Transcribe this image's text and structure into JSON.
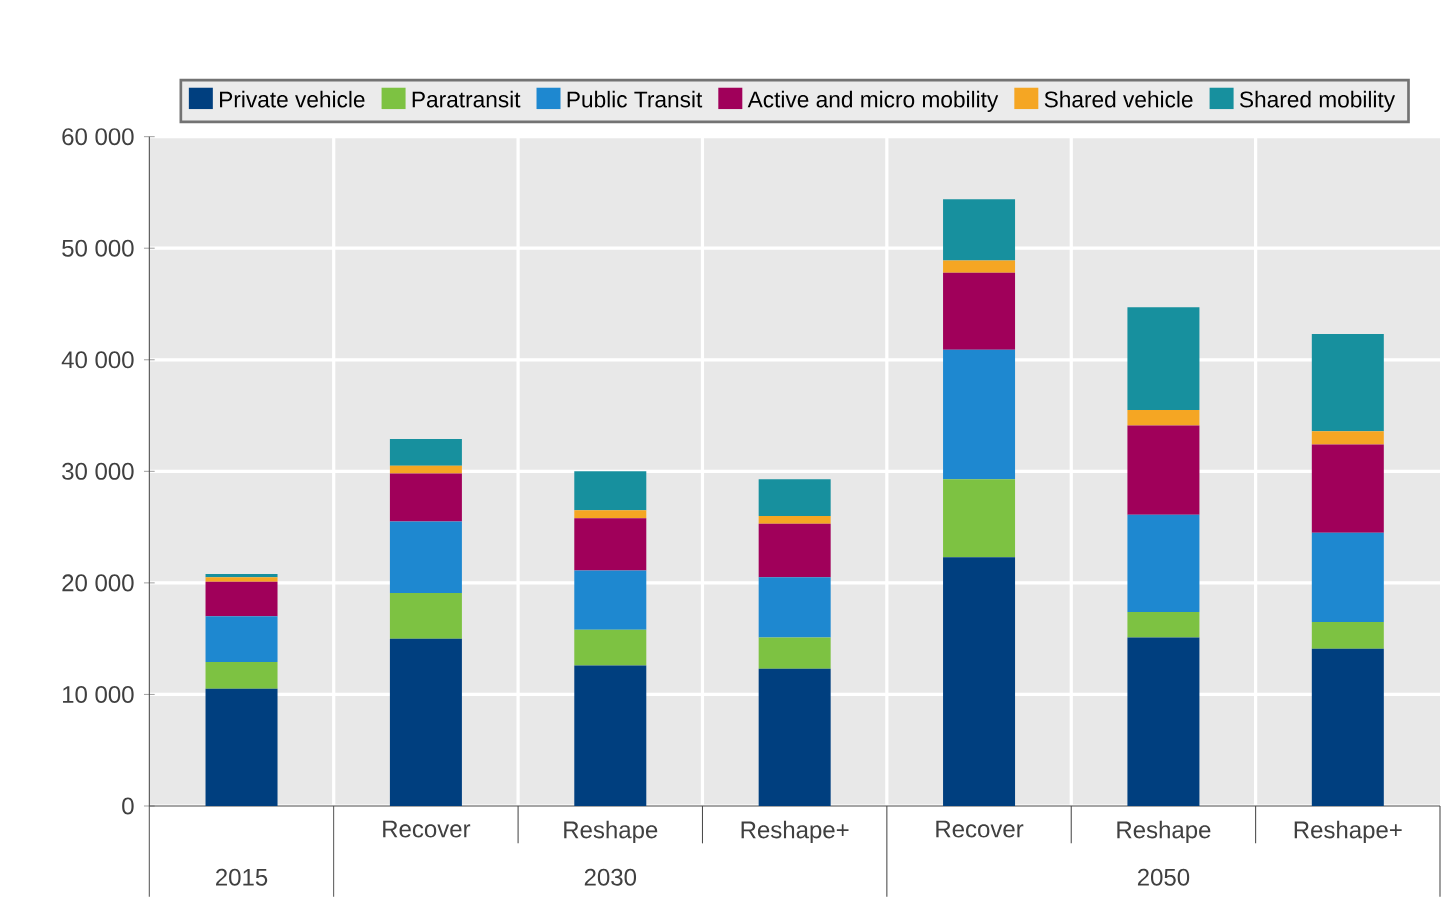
{
  "chart_data": {
    "type": "bar",
    "stacked": true,
    "categories": [
      null,
      "Recover",
      "Reshape",
      "Reshape+",
      "Recover",
      "Reshape",
      "Reshape+"
    ],
    "series": [
      {
        "name": "Private vehicle",
        "color": "#003f7f",
        "values": [
          10500,
          15000,
          12600,
          12300,
          22300,
          15100,
          14100
        ]
      },
      {
        "name": "Paratransit",
        "color": "#7dc242",
        "values": [
          2400,
          4100,
          3200,
          2800,
          7000,
          2300,
          2400
        ]
      },
      {
        "name": "Public Transit",
        "color": "#1e88d0",
        "values": [
          4100,
          6400,
          5300,
          5400,
          11600,
          8700,
          8000
        ]
      },
      {
        "name": "Active and micro mobility",
        "color": "#a0005a",
        "values": [
          3100,
          4300,
          4700,
          4800,
          6900,
          8000,
          7900
        ]
      },
      {
        "name": "Shared vehicle",
        "color": "#f5a623",
        "values": [
          400,
          700,
          700,
          700,
          1100,
          1400,
          1200
        ]
      },
      {
        "name": "Shared mobility",
        "color": "#17909e",
        "values": [
          300,
          2400,
          3500,
          3300,
          5500,
          9200,
          8700
        ]
      }
    ],
    "ylim": [
      0,
      60000
    ],
    "yticks": [
      0,
      {
        "value": 10000,
        "label": "10 000"
      },
      {
        "value": 20000,
        "label": "20 000"
      },
      {
        "value": 30000,
        "label": "30 000"
      },
      {
        "value": 40000,
        "label": "40 000"
      },
      {
        "value": 50000,
        "label": "50 000"
      },
      {
        "value": 60000,
        "label": "60 000"
      }
    ],
    "grid": "y",
    "legend": "top",
    "annotations": [
      "2015",
      "2030",
      "2050"
    ]
  }
}
